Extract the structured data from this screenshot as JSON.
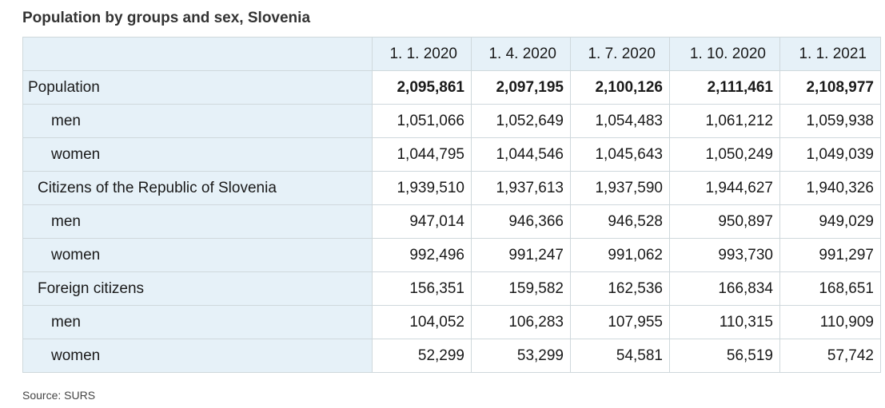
{
  "title": "Population by groups and sex, Slovenia",
  "columns": [
    "1. 1. 2020",
    "1. 4. 2020",
    "1. 7. 2020",
    "1. 10. 2020",
    "1. 1. 2021"
  ],
  "rows": [
    {
      "label": "Population",
      "values": [
        "2,095,861",
        "2,097,195",
        "2,100,126",
        "2,111,461",
        "2,108,977"
      ]
    },
    {
      "label": "men",
      "values": [
        "1,051,066",
        "1,052,649",
        "1,054,483",
        "1,061,212",
        "1,059,938"
      ]
    },
    {
      "label": "women",
      "values": [
        "1,044,795",
        "1,044,546",
        "1,045,643",
        "1,050,249",
        "1,049,039"
      ]
    },
    {
      "label": "Citizens of the Republic of Slovenia",
      "values": [
        "1,939,510",
        "1,937,613",
        "1,937,590",
        "1,944,627",
        "1,940,326"
      ]
    },
    {
      "label": "men",
      "values": [
        "947,014",
        "946,366",
        "946,528",
        "950,897",
        "949,029"
      ]
    },
    {
      "label": "women",
      "values": [
        "992,496",
        "991,247",
        "991,062",
        "993,730",
        "991,297"
      ]
    },
    {
      "label": "Foreign citizens",
      "values": [
        "156,351",
        "159,582",
        "162,536",
        "166,834",
        "168,651"
      ]
    },
    {
      "label": "men",
      "values": [
        "104,052",
        "106,283",
        "107,955",
        "110,315",
        "110,909"
      ]
    },
    {
      "label": "women",
      "values": [
        "52,299",
        "53,299",
        "54,581",
        "56,519",
        "57,742"
      ]
    }
  ],
  "source": "Source: SURS"
}
